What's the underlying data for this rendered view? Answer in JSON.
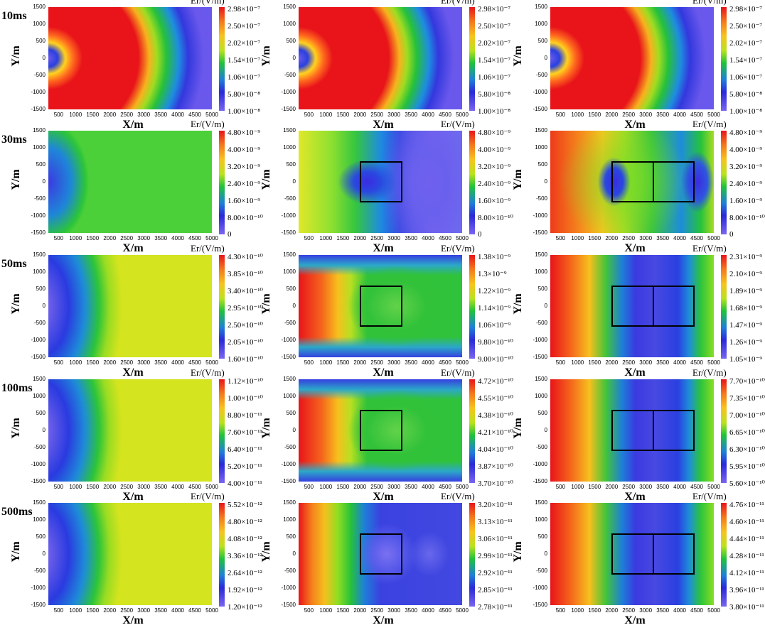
{
  "ylabel": "Y/m",
  "xlabel": "X/m",
  "colorbar_title": "Er/(V/m)",
  "x_ticks": [
    "500",
    "1000",
    "1500",
    "2000",
    "2500",
    "3000",
    "3500",
    "4000",
    "4500",
    "5000"
  ],
  "y_ticks": [
    "1500",
    "1000",
    "500",
    "0",
    "-500",
    "-1000",
    "-1500"
  ],
  "rows": [
    {
      "time": "10ms",
      "panels": [
        {
          "cb": [
            "2.98×10⁻⁷",
            "2.50×10⁻⁷",
            "2.02×10⁻⁷",
            "1.54×10⁻⁷",
            "1.06×10⁻⁷",
            "5.80×10⁻⁸",
            "1.00×10⁻⁸"
          ],
          "style": "early",
          "boxes": 0
        },
        {
          "cb": [
            "2.98×10⁻⁷",
            "2.50×10⁻⁷",
            "2.02×10⁻⁷",
            "1.54×10⁻⁷",
            "1.06×10⁻⁷",
            "5.80×10⁻⁸",
            "1.00×10⁻⁸"
          ],
          "style": "early",
          "boxes": 0
        },
        {
          "cb": [
            "2.98×10⁻⁷",
            "2.50×10⁻⁷",
            "2.02×10⁻⁷",
            "1.54×10⁻⁷",
            "1.06×10⁻⁷",
            "5.80×10⁻⁸",
            "1.00×10⁻⁸"
          ],
          "style": "early",
          "boxes": 0
        }
      ]
    },
    {
      "time": "30ms",
      "panels": [
        {
          "cb": [
            "4.80×10⁻⁹",
            "4.00×10⁻⁹",
            "3.20×10⁻⁹",
            "2.40×10⁻⁹",
            "1.60×10⁻⁹",
            "8.00×10⁻¹⁰",
            "0"
          ],
          "style": "flat",
          "boxes": 0
        },
        {
          "cb": [
            "4.80×10⁻⁹",
            "4.00×10⁻⁹",
            "3.20×10⁻⁹",
            "2.40×10⁻⁹",
            "1.60×10⁻⁹",
            "8.00×10⁻¹⁰",
            "0"
          ],
          "style": "anom1",
          "boxes": 1
        },
        {
          "cb": [
            "4.80×10⁻⁹",
            "4.00×10⁻⁹",
            "3.20×10⁻⁹",
            "2.40×10⁻⁹",
            "1.60×10⁻⁹",
            "8.00×10⁻¹⁰",
            "0"
          ],
          "style": "anom2",
          "boxes": 2
        }
      ]
    },
    {
      "time": "50ms",
      "panels": [
        {
          "cb": [
            "4.30×10⁻¹⁰",
            "3.85×10⁻¹⁰",
            "3.40×10⁻¹⁰",
            "2.95×10⁻¹⁰",
            "2.50×10⁻¹⁰",
            "2.05×10⁻¹⁰",
            "1.60×10⁻¹⁰"
          ],
          "style": "late",
          "boxes": 0
        },
        {
          "cb": [
            "1.38×10⁻⁹",
            "1.3×10⁻⁹",
            "1.22×10⁻⁹",
            "1.14×10⁻⁹",
            "1.06×10⁻⁹",
            "9.80×10⁻¹⁰",
            "9.00×10⁻¹⁰"
          ],
          "style": "mid1",
          "boxes": 1
        },
        {
          "cb": [
            "2.31×10⁻⁹",
            "2.10×10⁻⁹",
            "1.89×10⁻⁹",
            "1.68×10⁻⁹",
            "1.47×10⁻⁹",
            "1.26×10⁻⁹",
            "1.05×10⁻⁹"
          ],
          "style": "mid2",
          "boxes": 2
        }
      ]
    },
    {
      "time": "100ms",
      "panels": [
        {
          "cb": [
            "1.12×10⁻¹⁰",
            "1.00×10⁻¹⁰",
            "8.80×10⁻¹¹",
            "7.60×10⁻¹¹",
            "6.40×10⁻¹¹",
            "5.20×10⁻¹¹",
            "4.00×10⁻¹¹"
          ],
          "style": "late",
          "boxes": 0
        },
        {
          "cb": [
            "4.72×10⁻¹⁰",
            "4.55×10⁻¹⁰",
            "4.38×10⁻¹⁰",
            "4.21×10⁻¹⁰",
            "4.04×10⁻¹⁰",
            "3.87×10⁻¹⁰",
            "3.70×10⁻¹⁰"
          ],
          "style": "mid1",
          "boxes": 1
        },
        {
          "cb": [
            "7.70×10⁻¹⁰",
            "7.35×10⁻¹⁰",
            "7.00×10⁻¹⁰",
            "6.65×10⁻¹⁰",
            "6.30×10⁻¹⁰",
            "5.95×10⁻¹⁰",
            "5.60×10⁻¹⁰"
          ],
          "style": "mid2",
          "boxes": 2
        }
      ]
    },
    {
      "time": "500ms",
      "panels": [
        {
          "cb": [
            "5.52×10⁻¹²",
            "4.80×10⁻¹²",
            "4.08×10⁻¹²",
            "3.36×10⁻¹²",
            "2.64×10⁻¹²",
            "1.92×10⁻¹²",
            "1.20×10⁻¹²"
          ],
          "style": "late",
          "boxes": 0
        },
        {
          "cb": [
            "3.20×10⁻¹¹",
            "3.13×10⁻¹¹",
            "3.06×10⁻¹¹",
            "2.99×10⁻¹¹",
            "2.92×10⁻¹¹",
            "2.85×10⁻¹¹",
            "2.78×10⁻¹¹"
          ],
          "style": "end1",
          "boxes": 1
        },
        {
          "cb": [
            "4.76×10⁻¹¹",
            "4.60×10⁻¹¹",
            "4.44×10⁻¹¹",
            "4.28×10⁻¹¹",
            "4.12×10⁻¹¹",
            "3.96×10⁻¹¹",
            "3.80×10⁻¹¹"
          ],
          "style": "mid2",
          "boxes": 2
        }
      ]
    }
  ]
}
